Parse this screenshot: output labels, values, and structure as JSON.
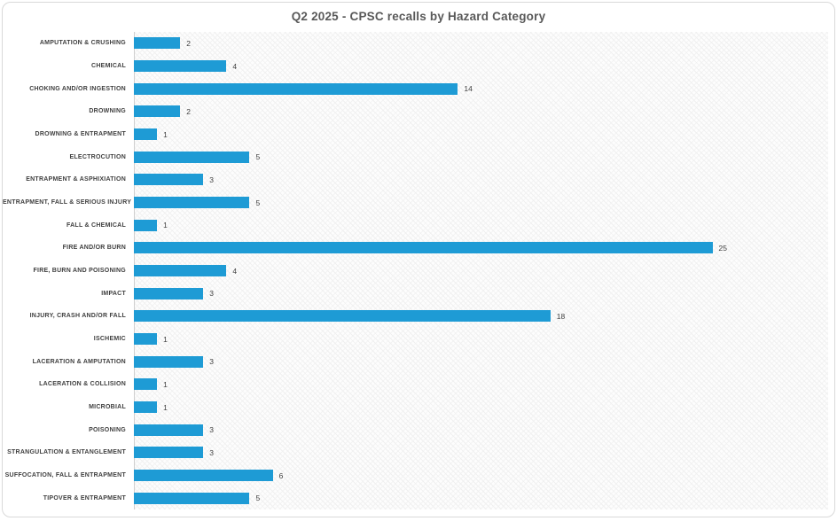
{
  "window": {
    "background_color": "#ffffff",
    "card_border_color": "#d9d9d9"
  },
  "chart_data": {
    "type": "bar",
    "orientation": "horizontal",
    "title": "Q2 2025 - CPSC recalls by Hazard Category",
    "title_color": "#595959",
    "bar_color": "#1e9bd5",
    "label_color": "#404040",
    "axis_line_color": "#cfcfcf",
    "grid": false,
    "legend": false,
    "data_labels": true,
    "xlabel": "",
    "ylabel": "",
    "xlim": [
      0,
      30
    ],
    "categories": [
      "AMPUTATION & CRUSHING",
      "CHEMICAL",
      "CHOKING AND/OR INGESTION",
      "DROWNING",
      "DROWNING & ENTRAPMENT",
      "ELECTROCUTION",
      "ENTRAPMENT & ASPHIXIATION",
      "ENTRAPMENT, FALL & SERIOUS INJURY",
      "FALL & CHEMICAL",
      "FIRE AND/OR BURN",
      "FIRE, BURN AND POISONING",
      "IMPACT",
      "INJURY, CRASH AND/OR FALL",
      "ISCHEMIC",
      "LACERATION & AMPUTATION",
      "LACERATION & COLLISION",
      "MICROBIAL",
      "POISONING",
      "STRANGULATION & ENTANGLEMENT",
      "SUFFOCATION, FALL & ENTRAPMENT",
      "TIPOVER & ENTRAPMENT"
    ],
    "values": [
      2,
      4,
      14,
      2,
      1,
      5,
      3,
      5,
      1,
      25,
      4,
      3,
      18,
      1,
      3,
      1,
      1,
      3,
      3,
      6,
      5
    ]
  }
}
